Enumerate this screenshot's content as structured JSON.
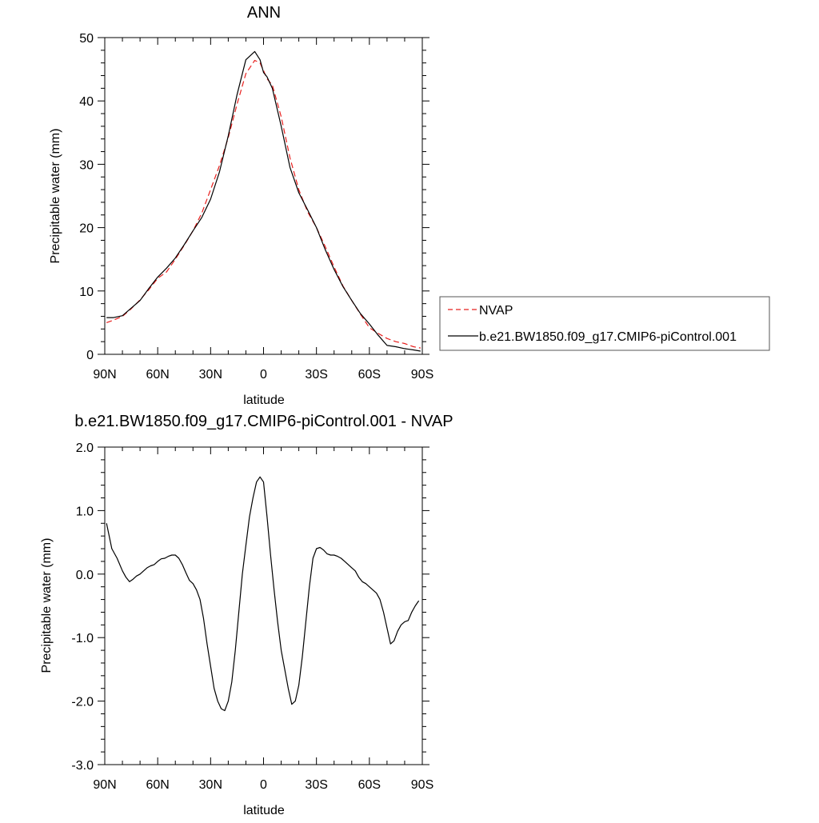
{
  "colors": {
    "background": "#ffffff",
    "axis": "#000000",
    "model_line": "#000000",
    "obs_line": "#e8201e"
  },
  "chart_data": [
    {
      "type": "line",
      "title": "ANN",
      "xlabel": "latitude",
      "ylabel": "Precipitable water (mm)",
      "xlim": [
        90,
        -90
      ],
      "ylim": [
        0,
        50
      ],
      "xticks": [
        90,
        60,
        30,
        0,
        -30,
        -60,
        -90
      ],
      "xticklabels": [
        "90N",
        "60N",
        "30N",
        "0",
        "30S",
        "60S",
        "90S"
      ],
      "yticks": [
        0,
        10,
        20,
        30,
        40,
        50
      ],
      "yticklabels": [
        "0",
        "10",
        "20",
        "30",
        "40",
        "50"
      ],
      "legend_position": "right, outside plot",
      "series": [
        {
          "name": "NVAP",
          "style": "dashed",
          "color": "#e8201e",
          "x": [
            89,
            85,
            80,
            75,
            70,
            65,
            60,
            55,
            50,
            45,
            40,
            35,
            30,
            25,
            20,
            15,
            10,
            5,
            2,
            0,
            -2,
            -5,
            -10,
            -15,
            -20,
            -25,
            -30,
            -35,
            -40,
            -45,
            -50,
            -55,
            -60,
            -65,
            -70,
            -75,
            -80,
            -85,
            -89
          ],
          "y": [
            5.0,
            5.4,
            6.0,
            7.2,
            8.6,
            10.2,
            12.0,
            13.0,
            15.0,
            17.2,
            19.5,
            22.3,
            26.0,
            29.8,
            34.2,
            39.5,
            44.3,
            46.4,
            46.0,
            44.8,
            43.5,
            42.5,
            37.5,
            31.0,
            26.0,
            22.5,
            20.0,
            17.0,
            13.8,
            10.8,
            8.5,
            6.3,
            4.2,
            3.3,
            2.5,
            2.0,
            1.7,
            1.2,
            1.0
          ]
        },
        {
          "name": "b.e21.BW1850.f09_g17.CMIP6-piControl.001",
          "style": "solid",
          "color": "#000000",
          "x": [
            89,
            85,
            80,
            75,
            70,
            65,
            60,
            55,
            50,
            45,
            40,
            35,
            30,
            25,
            20,
            15,
            10,
            5,
            2,
            0,
            -2,
            -5,
            -10,
            -15,
            -20,
            -25,
            -30,
            -35,
            -40,
            -45,
            -50,
            -55,
            -60,
            -65,
            -70,
            -75,
            -80,
            -85,
            -89
          ],
          "y": [
            5.8,
            5.8,
            6.1,
            7.3,
            8.5,
            10.4,
            12.2,
            13.6,
            15.2,
            17.3,
            19.5,
            21.6,
            24.5,
            28.8,
            34.5,
            41.0,
            46.5,
            47.8,
            46.5,
            44.5,
            43.8,
            42.0,
            36.0,
            29.5,
            25.5,
            22.8,
            20.0,
            16.5,
            13.4,
            10.7,
            8.5,
            6.4,
            4.8,
            3.0,
            1.4,
            1.2,
            0.9,
            0.7,
            0.5
          ]
        }
      ]
    },
    {
      "type": "line",
      "title": "b.e21.BW1850.f09_g17.CMIP6-piControl.001 - NVAP",
      "xlabel": "latitude",
      "ylabel": "Precipitable water (mm)",
      "xlim": [
        90,
        -90
      ],
      "ylim": [
        -3.0,
        2.0
      ],
      "xticks": [
        90,
        60,
        30,
        0,
        -30,
        -60,
        -90
      ],
      "xticklabels": [
        "90N",
        "60N",
        "30N",
        "0",
        "30S",
        "60S",
        "90S"
      ],
      "yticks": [
        2.0,
        1.0,
        0.0,
        -1.0,
        -2.0,
        -3.0
      ],
      "yticklabels": [
        "2.0",
        "1.0",
        "0.0",
        "-1.0",
        "-2.0",
        "-3.0"
      ],
      "series": [
        {
          "color": "#000000",
          "style": "solid",
          "x": [
            89,
            86,
            83,
            80,
            78,
            76,
            74,
            72,
            70,
            68,
            66,
            64,
            62,
            60,
            58,
            56,
            54,
            52,
            50,
            48,
            46,
            44,
            42,
            40,
            38,
            36,
            34,
            32,
            30,
            28,
            26,
            24,
            22,
            20,
            18,
            16,
            14,
            12,
            10,
            8,
            6,
            4,
            2,
            0,
            -2,
            -4,
            -6,
            -8,
            -10,
            -12,
            -14,
            -16,
            -18,
            -20,
            -22,
            -24,
            -26,
            -28,
            -30,
            -32,
            -34,
            -36,
            -38,
            -40,
            -42,
            -44,
            -46,
            -48,
            -50,
            -52,
            -54,
            -56,
            -58,
            -60,
            -62,
            -64,
            -66,
            -68,
            -70,
            -72,
            -74,
            -76,
            -78,
            -80,
            -82,
            -84,
            -86,
            -88
          ],
          "y": [
            0.8,
            0.4,
            0.25,
            0.05,
            -0.05,
            -0.12,
            -0.08,
            -0.03,
            0.0,
            0.05,
            0.1,
            0.13,
            0.15,
            0.2,
            0.24,
            0.25,
            0.28,
            0.3,
            0.3,
            0.25,
            0.15,
            0.02,
            -0.1,
            -0.15,
            -0.25,
            -0.4,
            -0.7,
            -1.1,
            -1.45,
            -1.8,
            -2.0,
            -2.12,
            -2.15,
            -2.0,
            -1.7,
            -1.2,
            -0.6,
            0.0,
            0.45,
            0.9,
            1.2,
            1.45,
            1.53,
            1.45,
            0.9,
            0.3,
            -0.25,
            -0.75,
            -1.2,
            -1.5,
            -1.8,
            -2.05,
            -2.0,
            -1.75,
            -1.3,
            -0.75,
            -0.2,
            0.25,
            0.4,
            0.42,
            0.38,
            0.32,
            0.3,
            0.3,
            0.28,
            0.25,
            0.2,
            0.15,
            0.1,
            0.05,
            -0.05,
            -0.12,
            -0.15,
            -0.2,
            -0.25,
            -0.3,
            -0.4,
            -0.6,
            -0.85,
            -1.1,
            -1.05,
            -0.9,
            -0.8,
            -0.75,
            -0.73,
            -0.6,
            -0.5,
            -0.42
          ]
        }
      ]
    }
  ]
}
